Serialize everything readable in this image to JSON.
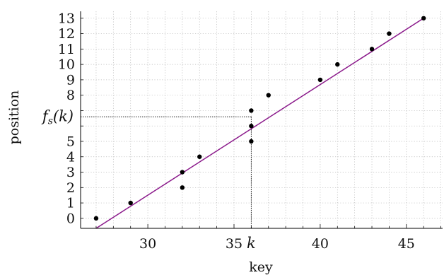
{
  "chart_data": {
    "type": "scatter",
    "xlabel": "key",
    "ylabel": "position",
    "xlim": [
      26.1,
      47.1
    ],
    "ylim": [
      -0.65,
      13.45
    ],
    "x_ticks": [
      30,
      35,
      40,
      45
    ],
    "x_tick_labels": [
      "30",
      "35",
      "40",
      "45"
    ],
    "y_ticks": [
      0,
      1,
      2,
      3,
      4,
      5,
      8,
      9,
      10,
      11,
      12,
      13
    ],
    "y_tick_labels": [
      "0",
      "1",
      "2",
      "3",
      "4",
      "5",
      "8",
      "9",
      "10",
      "11",
      "12",
      "13"
    ],
    "grid": true,
    "points": [
      {
        "x": 27,
        "y": 0
      },
      {
        "x": 29,
        "y": 1
      },
      {
        "x": 32,
        "y": 2
      },
      {
        "x": 32,
        "y": 3
      },
      {
        "x": 33,
        "y": 4
      },
      {
        "x": 36,
        "y": 5
      },
      {
        "x": 36,
        "y": 6
      },
      {
        "x": 36,
        "y": 7
      },
      {
        "x": 37,
        "y": 8
      },
      {
        "x": 40,
        "y": 9
      },
      {
        "x": 41,
        "y": 10
      },
      {
        "x": 43,
        "y": 11
      },
      {
        "x": 44,
        "y": 12
      },
      {
        "x": 46,
        "y": 13
      }
    ],
    "fit_line": {
      "x": [
        27,
        46
      ],
      "y": [
        -0.65,
        13.0
      ],
      "color": "#8b1a8b"
    },
    "highlight": {
      "x": 36,
      "y": 6.6,
      "x_label": "k",
      "y_label": "f_s(k)"
    },
    "colors": {
      "points": "#000000",
      "grid": "#b8b8b8",
      "axis": "#000000"
    }
  }
}
